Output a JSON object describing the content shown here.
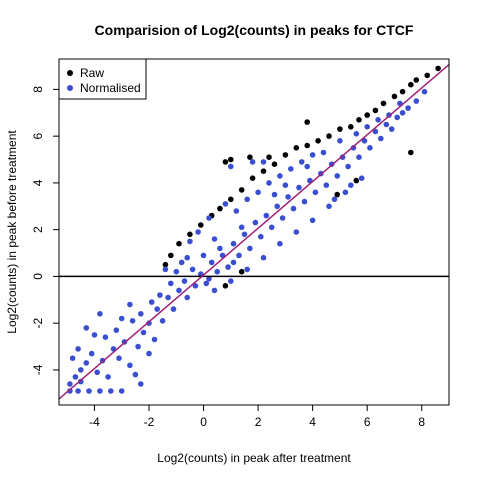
{
  "chart_data": {
    "type": "scatter",
    "title": "Comparision of Log2(counts) in peaks for CTCF",
    "xlabel": "Log2(counts) in peak after treatment",
    "ylabel": "Log2(counts) in peak before treatment",
    "xlim": [
      -5.3,
      9.0
    ],
    "ylim": [
      -5.5,
      9.3
    ],
    "xticks": [
      -4,
      -2,
      0,
      2,
      4,
      6,
      8
    ],
    "yticks": [
      -4,
      -2,
      0,
      2,
      4,
      6,
      8
    ],
    "grid": false,
    "legend_position": "top-left",
    "hline": 0,
    "fit_line": {
      "intercept": 0.06,
      "slope": 1.0,
      "color": "#a0207a"
    },
    "series": [
      {
        "name": "Raw",
        "color": "#000000",
        "points": [
          [
            8.6,
            8.9
          ],
          [
            8.2,
            8.6
          ],
          [
            7.8,
            8.4
          ],
          [
            7.6,
            8.2
          ],
          [
            7.3,
            7.9
          ],
          [
            7.0,
            7.7
          ],
          [
            6.6,
            7.4
          ],
          [
            6.3,
            7.1
          ],
          [
            6.0,
            6.9
          ],
          [
            5.7,
            6.7
          ],
          [
            5.4,
            6.4
          ],
          [
            5.0,
            6.3
          ],
          [
            4.6,
            6.0
          ],
          [
            4.2,
            5.8
          ],
          [
            3.8,
            5.6
          ],
          [
            3.4,
            5.5
          ],
          [
            3.0,
            5.2
          ],
          [
            2.6,
            4.8
          ],
          [
            2.2,
            4.5
          ],
          [
            1.8,
            4.2
          ],
          [
            1.4,
            3.7
          ],
          [
            1.0,
            3.3
          ],
          [
            0.6,
            2.9
          ],
          [
            0.3,
            2.6
          ],
          [
            -0.1,
            2.2
          ],
          [
            -0.5,
            1.8
          ],
          [
            -0.9,
            1.4
          ],
          [
            -1.2,
            0.9
          ],
          [
            -1.4,
            0.5
          ],
          [
            0.8,
            4.9
          ],
          [
            1.7,
            5.1
          ],
          [
            2.4,
            5.1
          ],
          [
            3.8,
            6.6
          ],
          [
            1.0,
            5.0
          ],
          [
            7.6,
            5.3
          ],
          [
            5.6,
            4.1
          ],
          [
            4.9,
            3.5
          ],
          [
            0.8,
            -0.4
          ],
          [
            1.4,
            0.2
          ]
        ]
      },
      {
        "name": "Normalised",
        "color": "#3a4fd0",
        "points": [
          [
            -4.9,
            -4.9
          ],
          [
            -4.6,
            -4.9
          ],
          [
            -4.2,
            -4.9
          ],
          [
            -3.8,
            -4.9
          ],
          [
            -3.4,
            -4.9
          ],
          [
            -3.0,
            -4.9
          ],
          [
            -4.9,
            -4.6
          ],
          [
            -4.7,
            -4.3
          ],
          [
            -4.5,
            -4.0
          ],
          [
            -4.8,
            -3.5
          ],
          [
            -4.6,
            -3.1
          ],
          [
            -4.3,
            -3.7
          ],
          [
            -4.1,
            -3.3
          ],
          [
            -3.9,
            -4.1
          ],
          [
            -3.7,
            -3.6
          ],
          [
            -3.5,
            -4.3
          ],
          [
            -3.3,
            -3.1
          ],
          [
            -3.6,
            -2.6
          ],
          [
            -4.0,
            -2.5
          ],
          [
            -3.2,
            -2.3
          ],
          [
            -2.9,
            -2.8
          ],
          [
            -2.7,
            -3.8
          ],
          [
            -2.5,
            -4.2
          ],
          [
            -2.4,
            -3.0
          ],
          [
            -2.2,
            -2.4
          ],
          [
            -2.6,
            -1.9
          ],
          [
            -2.3,
            -1.6
          ],
          [
            -2.0,
            -2.0
          ],
          [
            -1.8,
            -2.7
          ],
          [
            -1.7,
            -1.4
          ],
          [
            -1.5,
            -1.9
          ],
          [
            -2.0,
            -3.3
          ],
          [
            -1.6,
            -0.8
          ],
          [
            -3.0,
            -1.8
          ],
          [
            -3.8,
            -1.6
          ],
          [
            -4.3,
            -2.2
          ],
          [
            -2.7,
            -1.2
          ],
          [
            -4.5,
            -4.5
          ],
          [
            -3.1,
            -3.5
          ],
          [
            -2.3,
            -4.6
          ],
          [
            -1.9,
            -1.1
          ],
          [
            -1.3,
            -0.9
          ],
          [
            -1.1,
            -1.4
          ],
          [
            -0.9,
            -0.6
          ],
          [
            -0.7,
            -0.2
          ],
          [
            -0.6,
            -0.9
          ],
          [
            -0.4,
            0.3
          ],
          [
            -0.3,
            -0.4
          ],
          [
            -0.1,
            0.1
          ],
          [
            0.1,
            -0.3
          ],
          [
            0.3,
            0.6
          ],
          [
            0.5,
            0.2
          ],
          [
            0.7,
            0.9
          ],
          [
            0.9,
            0.4
          ],
          [
            1.1,
            1.4
          ],
          [
            1.3,
            0.9
          ],
          [
            1.5,
            1.8
          ],
          [
            1.7,
            1.2
          ],
          [
            1.9,
            2.3
          ],
          [
            2.1,
            1.7
          ],
          [
            2.3,
            2.6
          ],
          [
            2.5,
            2.1
          ],
          [
            2.7,
            3.0
          ],
          [
            2.9,
            2.5
          ],
          [
            3.1,
            3.4
          ],
          [
            3.3,
            2.9
          ],
          [
            3.5,
            3.8
          ],
          [
            3.7,
            3.2
          ],
          [
            3.9,
            4.1
          ],
          [
            4.1,
            3.6
          ],
          [
            4.3,
            4.4
          ],
          [
            4.5,
            3.9
          ],
          [
            4.7,
            4.8
          ],
          [
            4.9,
            4.3
          ],
          [
            5.1,
            5.1
          ],
          [
            5.3,
            4.7
          ],
          [
            5.5,
            5.5
          ],
          [
            5.7,
            5.1
          ],
          [
            5.9,
            5.8
          ],
          [
            6.1,
            5.5
          ],
          [
            6.3,
            6.2
          ],
          [
            6.5,
            5.9
          ],
          [
            6.7,
            6.5
          ],
          [
            6.9,
            6.3
          ],
          [
            7.1,
            6.8
          ],
          [
            7.3,
            7.0
          ],
          [
            7.5,
            7.2
          ],
          [
            7.8,
            7.5
          ],
          [
            8.1,
            7.9
          ],
          [
            -0.5,
            1.5
          ],
          [
            -0.2,
            1.9
          ],
          [
            0.2,
            2.5
          ],
          [
            0.4,
            1.6
          ],
          [
            0.8,
            3.1
          ],
          [
            1.2,
            2.8
          ],
          [
            1.6,
            3.3
          ],
          [
            2.0,
            3.6
          ],
          [
            2.4,
            4.0
          ],
          [
            2.8,
            4.3
          ],
          [
            3.2,
            4.6
          ],
          [
            3.6,
            4.9
          ],
          [
            4.0,
            5.2
          ],
          [
            1.0,
            4.7
          ],
          [
            1.8,
            4.9
          ],
          [
            2.2,
            4.9
          ],
          [
            0.4,
            -0.6
          ],
          [
            1.0,
            -0.2
          ],
          [
            1.6,
            0.3
          ],
          [
            2.2,
            0.8
          ],
          [
            2.8,
            1.4
          ],
          [
            3.4,
            1.9
          ],
          [
            4.0,
            2.4
          ],
          [
            4.6,
            3.0
          ],
          [
            5.2,
            3.6
          ],
          [
            5.8,
            4.2
          ],
          [
            5.4,
            3.9
          ],
          [
            4.8,
            3.3
          ],
          [
            -0.8,
            0.6
          ],
          [
            -1.0,
            0.2
          ],
          [
            -1.2,
            -0.3
          ],
          [
            0.0,
            0.9
          ],
          [
            0.6,
            1.2
          ],
          [
            1.4,
            2.1
          ],
          [
            2.6,
            3.5
          ],
          [
            3.0,
            3.9
          ],
          [
            3.8,
            4.7
          ],
          [
            4.4,
            5.3
          ],
          [
            5.0,
            5.8
          ],
          [
            5.6,
            6.1
          ],
          [
            6.0,
            6.4
          ],
          [
            6.4,
            6.7
          ],
          [
            6.8,
            6.9
          ],
          [
            7.2,
            7.4
          ],
          [
            -1.4,
            0.3
          ],
          [
            -0.6,
            0.8
          ],
          [
            0.2,
            -0.1
          ],
          [
            1.1,
            0.6
          ]
        ]
      }
    ]
  }
}
